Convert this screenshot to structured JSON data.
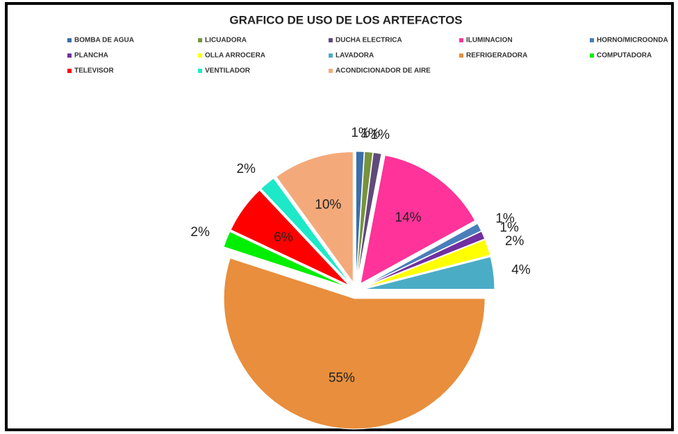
{
  "chart_data": {
    "type": "pie",
    "title": "GRAFICO DE USO DE LOS ARTEFACTOS",
    "categories": [
      "BOMBA DE AGUA",
      "LICUADORA",
      "DUCHA ELECTRICA",
      "ILUMINACION",
      "HORNO/MICROONDA",
      "PLANCHA",
      "OLLA ARROCERA",
      "LAVADORA",
      "REFRIGERADORA",
      "COMPUTADORA",
      "TELEVISOR",
      "VENTILADOR",
      "ACONDICIONADOR DE AIRE"
    ],
    "values": [
      1,
      1,
      1,
      14,
      1,
      1,
      2,
      4,
      55,
      2,
      6,
      2,
      10
    ],
    "value_labels": [
      "1%",
      "1%",
      "1%",
      "14%",
      "1%",
      "1%",
      "2%",
      "4%",
      "55%",
      "2%",
      "6%",
      "2%",
      "10%"
    ],
    "colors": [
      "#3c6ea8",
      "#77933c",
      "#604a7b",
      "#ff3399",
      "#4a7ebb",
      "#7030a0",
      "#ffff00",
      "#4bacc6",
      "#e88e3c",
      "#00ee00",
      "#ff0000",
      "#1de9c9",
      "#f4a97a"
    ],
    "legend": "top"
  }
}
